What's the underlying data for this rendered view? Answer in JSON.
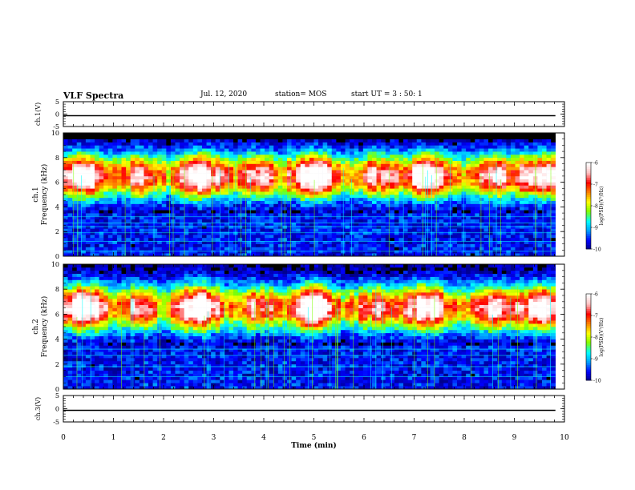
{
  "header": {
    "title": "VLF Spectra",
    "date": "Jul. 12, 2020",
    "station": "station= MOS",
    "start": "start UT = 3 : 50: 1"
  },
  "chart_data": [
    {
      "type": "line",
      "panel": "ch1-waveform",
      "ylabel": "ch.1(V)",
      "yticks": [
        "5",
        "0",
        "-5"
      ],
      "ylim": [
        -5,
        5
      ],
      "x": [
        0,
        9.82
      ],
      "values": [
        0,
        0
      ]
    },
    {
      "type": "heatmap",
      "panel": "ch1-spectrogram",
      "ylabel_channel": "ch.1",
      "ylabel": "Frequency (kHz)",
      "yticks": [
        "0",
        "2",
        "4",
        "6",
        "8",
        "10"
      ],
      "ylim": [
        0,
        10
      ],
      "xlim": [
        0,
        9.82
      ],
      "colorbar": {
        "label": "log(PSD)(V²/Hz)",
        "ticks": [
          "-6",
          "-7",
          "-8",
          "-9",
          "-10"
        ],
        "range": [
          -10,
          -6
        ]
      },
      "saturation_above_khz": 9.5,
      "peak_band_khz": [
        5.5,
        7.5
      ],
      "horizontal_lines_khz": [
        0.4,
        1.2,
        1.9,
        2.4,
        2.7,
        3.2
      ]
    },
    {
      "type": "heatmap",
      "panel": "ch2-spectrogram",
      "ylabel_channel": "ch.2",
      "ylabel": "Frequency (kHz)",
      "yticks": [
        "0",
        "2",
        "4",
        "6",
        "8",
        "10"
      ],
      "ylim": [
        0,
        10
      ],
      "xlim": [
        0,
        9.82
      ],
      "colorbar": {
        "label": "log(PSD)(V²/Hz)",
        "ticks": [
          "-6",
          "-7",
          "-8",
          "-9",
          "-10"
        ],
        "range": [
          -10,
          -6
        ]
      },
      "peak_band_khz": [
        5.5,
        7.5
      ],
      "horizontal_lines_khz": [
        1.0,
        1.8,
        2.7,
        3.2
      ]
    },
    {
      "type": "line",
      "panel": "ch3-waveform",
      "ylabel": "ch.3(V)",
      "yticks": [
        "5",
        "0",
        "-5"
      ],
      "ylim": [
        -5,
        5
      ],
      "x": [
        0,
        9.82
      ],
      "values": [
        0,
        0
      ]
    }
  ],
  "xaxis": {
    "label": "Time (min)",
    "ticks": [
      "0",
      "1",
      "2",
      "3",
      "4",
      "5",
      "6",
      "7",
      "8",
      "9",
      "10"
    ],
    "xlim": [
      0,
      10
    ]
  },
  "colors": {
    "colormap": [
      "#000080",
      "#0000ff",
      "#00a0ff",
      "#00ffff",
      "#80ff00",
      "#ffff00",
      "#ff8000",
      "#ff0000",
      "#ffc0c0",
      "#ffffff"
    ],
    "trace": "#000000",
    "saturation": "#000000"
  }
}
